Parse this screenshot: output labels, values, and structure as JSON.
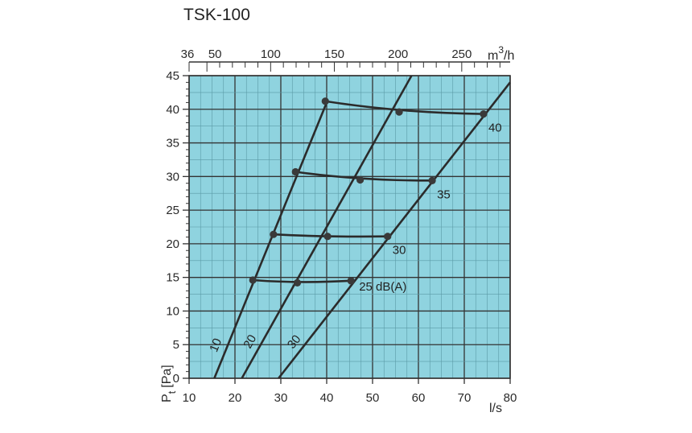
{
  "chart_data": {
    "type": "line",
    "title": "TSK-100",
    "xlabel": "l/s",
    "ylabel": "Pt [Pa]",
    "ylabel_main": "P",
    "ylabel_sub": "t",
    "ylabel_unit": "[Pa]",
    "xlim": [
      10,
      80
    ],
    "ylim": [
      0,
      45
    ],
    "x_ticks": [
      10,
      20,
      30,
      40,
      50,
      60,
      70,
      80
    ],
    "y_ticks": [
      0,
      5,
      10,
      15,
      20,
      25,
      30,
      35,
      40,
      45
    ],
    "secondary_x": {
      "label": "m3/h",
      "label_main": "m",
      "label_sup": "3",
      "label_rest": "/h",
      "ticks": [
        36,
        50,
        100,
        150,
        200,
        250
      ],
      "range": [
        36,
        288
      ]
    },
    "grid": true,
    "background": "#8fd3df",
    "line_color": "#2b2b2b",
    "series": [
      {
        "name": "10",
        "x": [
          15.5,
          40
        ],
        "y": [
          0,
          41
        ]
      },
      {
        "name": "20",
        "x": [
          21.5,
          58.5
        ],
        "y": [
          0,
          45
        ]
      },
      {
        "name": "30",
        "x": [
          29.5,
          80
        ],
        "y": [
          0,
          44
        ]
      }
    ],
    "noise_curves": [
      {
        "label": "25 dB(A)",
        "points": [
          [
            23.9,
            14.6
          ],
          [
            33.6,
            14.2
          ],
          [
            45.3,
            14.5
          ]
        ]
      },
      {
        "label": "30",
        "points": [
          [
            28.4,
            21.4
          ],
          [
            40.2,
            21.1
          ],
          [
            53.3,
            21.1
          ]
        ]
      },
      {
        "label": "35",
        "points": [
          [
            33.2,
            30.7
          ],
          [
            47.3,
            29.5
          ],
          [
            63.0,
            29.4
          ]
        ]
      },
      {
        "label": "40",
        "points": [
          [
            39.7,
            41.2
          ],
          [
            55.8,
            39.6
          ],
          [
            74.2,
            39.3
          ]
        ]
      }
    ]
  }
}
